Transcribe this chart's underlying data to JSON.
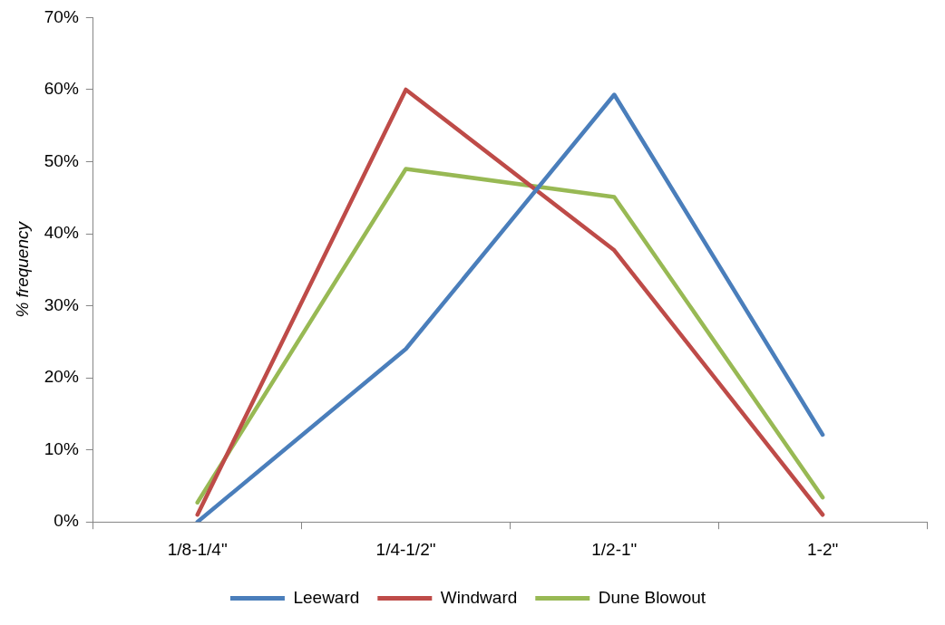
{
  "chart_data": {
    "type": "line",
    "ylabel": "% frequency",
    "categories": [
      "1/8-1/4\"",
      "1/4-1/2\"",
      "1/2-1\"",
      "1-2\""
    ],
    "series": [
      {
        "name": "Leeward",
        "color": "#4a7ebb",
        "values": [
          0,
          24,
          59.3,
          12.1
        ]
      },
      {
        "name": "Windward",
        "color": "#be4b48",
        "values": [
          1,
          60,
          37.7,
          1
        ]
      },
      {
        "name": "Dune Blowout",
        "color": "#98b954",
        "values": [
          2.7,
          49,
          45.1,
          3.4
        ]
      }
    ],
    "ylim": [
      0,
      70
    ],
    "yticks": [
      {
        "value": 0,
        "label": "0%"
      },
      {
        "value": 10,
        "label": "10%"
      },
      {
        "value": 20,
        "label": "20%"
      },
      {
        "value": 30,
        "label": "30%"
      },
      {
        "value": 40,
        "label": "40%"
      },
      {
        "value": 50,
        "label": "50%"
      },
      {
        "value": 60,
        "label": "60%"
      },
      {
        "value": 70,
        "label": "70%"
      }
    ],
    "grid": false,
    "legend": "bottom",
    "marker": "none",
    "line_style": "solid"
  }
}
